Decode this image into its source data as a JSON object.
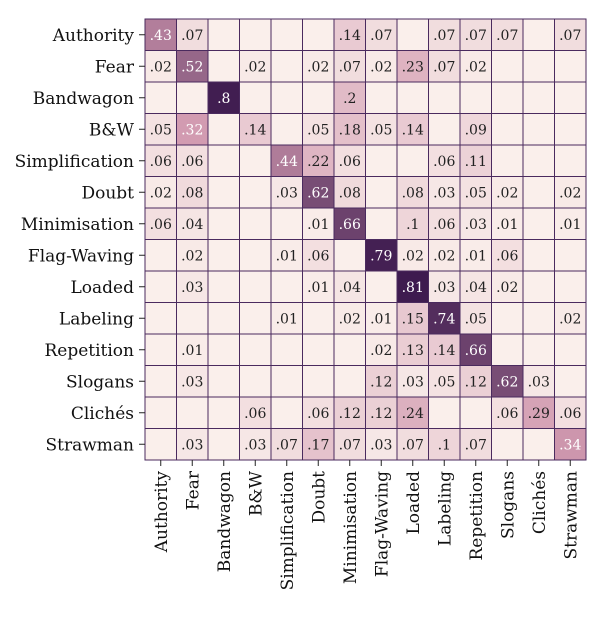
{
  "chart_data": {
    "type": "heatmap",
    "title": "",
    "xlabel": "",
    "ylabel": "",
    "row_labels": [
      "Authority",
      "Fear",
      "Bandwagon",
      "B&W",
      "Simplification",
      "Doubt",
      "Minimisation",
      "Flag-Waving",
      "Loaded",
      "Labeling",
      "Repetition",
      "Slogans",
      "Clichés",
      "Strawman"
    ],
    "col_labels": [
      "Authority",
      "Fear",
      "Bandwagon",
      "B&W",
      "Simplification",
      "Doubt",
      "Minimisation",
      "Flag-Waving",
      "Loaded",
      "Labeling",
      "Repetition",
      "Slogans",
      "Clichés",
      "Strawman"
    ],
    "values": [
      [
        0.43,
        0.07,
        null,
        null,
        null,
        null,
        0.14,
        0.07,
        null,
        0.07,
        0.07,
        0.07,
        null,
        0.07
      ],
      [
        0.02,
        0.52,
        null,
        0.02,
        null,
        0.02,
        0.07,
        0.02,
        0.23,
        0.07,
        0.02,
        null,
        null,
        null
      ],
      [
        null,
        null,
        0.8,
        null,
        null,
        null,
        0.2,
        null,
        null,
        null,
        null,
        null,
        null,
        null
      ],
      [
        0.05,
        0.32,
        null,
        0.14,
        null,
        0.05,
        0.18,
        0.05,
        0.14,
        null,
        0.09,
        null,
        null,
        null
      ],
      [
        0.06,
        0.06,
        null,
        null,
        0.44,
        0.22,
        0.06,
        null,
        null,
        0.06,
        0.11,
        null,
        null,
        null
      ],
      [
        0.02,
        0.08,
        null,
        null,
        0.03,
        0.62,
        0.08,
        null,
        0.08,
        0.03,
        0.05,
        0.02,
        null,
        0.02
      ],
      [
        0.06,
        0.04,
        null,
        null,
        null,
        0.01,
        0.66,
        null,
        0.1,
        0.06,
        0.03,
        0.01,
        null,
        0.01
      ],
      [
        null,
        0.02,
        null,
        null,
        0.01,
        0.06,
        null,
        0.79,
        0.02,
        0.02,
        0.01,
        0.06,
        null,
        null
      ],
      [
        null,
        0.03,
        null,
        null,
        null,
        0.01,
        0.04,
        null,
        0.81,
        0.03,
        0.04,
        0.02,
        null,
        null
      ],
      [
        null,
        null,
        null,
        null,
        0.01,
        null,
        0.02,
        0.01,
        0.15,
        0.74,
        0.05,
        null,
        null,
        0.02
      ],
      [
        null,
        0.01,
        null,
        null,
        null,
        null,
        null,
        0.02,
        0.13,
        0.14,
        0.66,
        null,
        null,
        null
      ],
      [
        null,
        0.03,
        null,
        null,
        null,
        null,
        null,
        0.12,
        0.03,
        0.05,
        0.12,
        0.62,
        0.03,
        null
      ],
      [
        null,
        null,
        null,
        0.06,
        null,
        0.06,
        0.12,
        0.12,
        0.24,
        null,
        null,
        0.06,
        0.29,
        0.06
      ],
      [
        null,
        0.03,
        null,
        0.03,
        0.07,
        0.17,
        0.07,
        0.03,
        0.07,
        0.1,
        0.07,
        null,
        null,
        0.34
      ]
    ],
    "cell_labels": [
      [
        ".43",
        ".07",
        "",
        "",
        "",
        "",
        ".14",
        ".07",
        "",
        ".07",
        ".07",
        ".07",
        "",
        ".07"
      ],
      [
        ".02",
        ".52",
        "",
        ".02",
        "",
        ".02",
        ".07",
        ".02",
        ".23",
        ".07",
        ".02",
        "",
        "",
        ""
      ],
      [
        "",
        "",
        ".8",
        "",
        "",
        "",
        ".2",
        "",
        "",
        "",
        "",
        "",
        "",
        ""
      ],
      [
        ".05",
        ".32",
        "",
        ".14",
        "",
        ".05",
        ".18",
        ".05",
        ".14",
        "",
        ".09",
        "",
        "",
        ""
      ],
      [
        ".06",
        ".06",
        "",
        "",
        ".44",
        ".22",
        ".06",
        "",
        "",
        ".06",
        ".11",
        "",
        "",
        ""
      ],
      [
        ".02",
        ".08",
        "",
        "",
        ".03",
        ".62",
        ".08",
        "",
        ".08",
        ".03",
        ".05",
        ".02",
        "",
        ".02"
      ],
      [
        ".06",
        ".04",
        "",
        "",
        "",
        ".01",
        ".66",
        "",
        ".1",
        ".06",
        ".03",
        ".01",
        "",
        ".01"
      ],
      [
        "",
        ".02",
        "",
        "",
        ".01",
        ".06",
        "",
        ".79",
        ".02",
        ".02",
        ".01",
        ".06",
        "",
        ""
      ],
      [
        "",
        ".03",
        "",
        "",
        "",
        ".01",
        ".04",
        "",
        ".81",
        ".03",
        ".04",
        ".02",
        "",
        ""
      ],
      [
        "",
        "",
        "",
        "",
        ".01",
        "",
        ".02",
        ".01",
        ".15",
        ".74",
        ".05",
        "",
        "",
        ".02"
      ],
      [
        "",
        ".01",
        "",
        "",
        "",
        "",
        "",
        ".02",
        ".13",
        ".14",
        ".66",
        "",
        "",
        ""
      ],
      [
        "",
        ".03",
        "",
        "",
        "",
        "",
        "",
        ".12",
        ".03",
        ".05",
        ".12",
        ".62",
        ".03",
        ""
      ],
      [
        "",
        "",
        "",
        ".06",
        "",
        ".06",
        ".12",
        ".12",
        ".24",
        "",
        "",
        ".06",
        ".29",
        ".06"
      ],
      [
        "",
        ".03",
        "",
        ".03",
        ".07",
        ".17",
        ".07",
        ".03",
        ".07",
        ".1",
        ".07",
        "",
        "",
        ".34"
      ]
    ],
    "colormap": {
      "low": "#faefeb",
      "mid": "#d29ab0",
      "high": "#3e1b4f",
      "empty": "#faefeb",
      "grid": "#4a2a5e",
      "text_dark": "#222222",
      "text_light": "#ffffff"
    },
    "grid": true,
    "legend": "none"
  }
}
